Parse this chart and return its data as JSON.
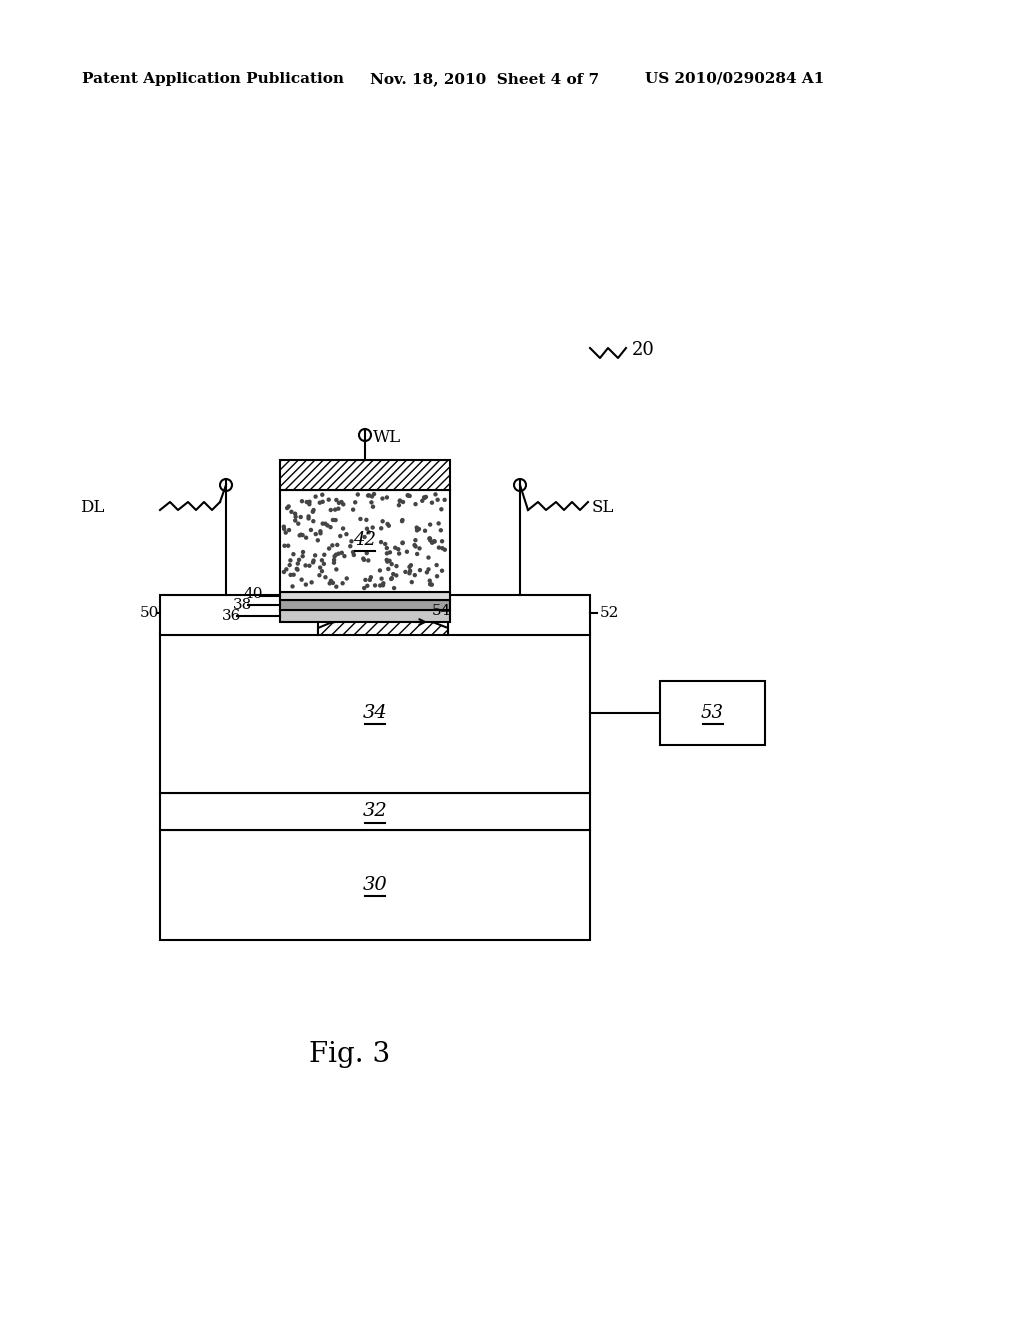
{
  "bg_color": "#ffffff",
  "line_color": "#000000",
  "label_20": "20",
  "label_wl": "WL",
  "label_dl": "DL",
  "label_sl": "SL",
  "label_42": "42",
  "label_40": "40",
  "label_38": "38",
  "label_36": "36",
  "label_50": "50",
  "label_52": "52",
  "label_54": "54",
  "label_34": "34",
  "label_32": "32",
  "label_30": "30",
  "label_53": "53",
  "fig_label": "Fig. 3",
  "header1": "Patent Application Publication",
  "header2": "Nov. 18, 2010  Sheet 4 of 7",
  "header3": "US 2010/0290284 A1"
}
